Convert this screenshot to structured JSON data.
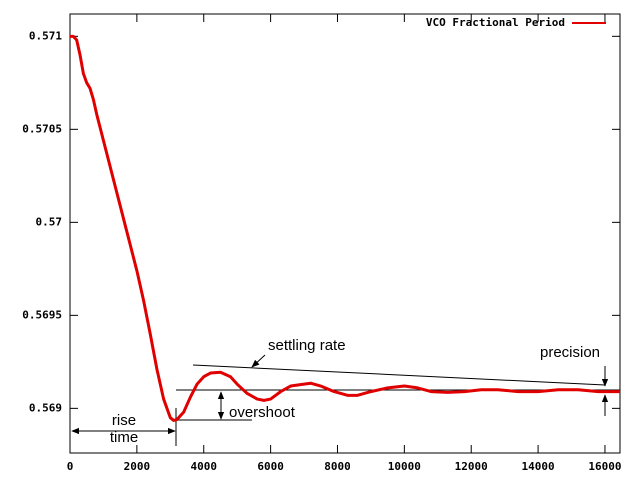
{
  "chart_data": {
    "type": "line",
    "x": [
      0,
      100,
      200,
      300,
      400,
      500,
      600,
      700,
      800,
      1000,
      1200,
      1400,
      1600,
      1800,
      2000,
      2200,
      2400,
      2600,
      2800,
      3000,
      3100,
      3200,
      3400,
      3600,
      3800,
      4000,
      4200,
      4500,
      4800,
      5000,
      5300,
      5600,
      5800,
      6000,
      6300,
      6600,
      7000,
      7200,
      7500,
      7900,
      8300,
      8600,
      9000,
      9500,
      10000,
      10400,
      10800,
      11300,
      11800,
      12300,
      12800,
      13400,
      14000,
      14600,
      15200,
      15800,
      16450
    ],
    "series": [
      {
        "name": "VCO Fractional Period",
        "color": "#e00000",
        "values": [
          0.571,
          0.571,
          0.57098,
          0.5709,
          0.5708,
          0.57075,
          0.57072,
          0.57066,
          0.57058,
          0.57044,
          0.5703,
          0.57016,
          0.57002,
          0.56988,
          0.56974,
          0.56958,
          0.5694,
          0.56921,
          0.56905,
          0.56895,
          0.568935,
          0.56894,
          0.56898,
          0.56906,
          0.56913,
          0.56917,
          0.56919,
          0.569194,
          0.56917,
          0.56913,
          0.56908,
          0.56905,
          0.569043,
          0.56905,
          0.56909,
          0.56912,
          0.56913,
          0.569135,
          0.56912,
          0.56909,
          0.56907,
          0.56907,
          0.56909,
          0.56911,
          0.56912,
          0.56911,
          0.56909,
          0.569086,
          0.56909,
          0.5691,
          0.5691,
          0.56909,
          0.56909,
          0.5691,
          0.5691,
          0.56909,
          0.56909
        ]
      }
    ],
    "xlim": [
      0,
      16450
    ],
    "xticks": [
      0,
      2000,
      4000,
      6000,
      8000,
      10000,
      12000,
      14000,
      16000
    ],
    "ylim": [
      0.56876,
      0.57112
    ],
    "yticks": [
      0.569,
      0.5695,
      0.57,
      0.5705,
      0.571
    ],
    "grid": false,
    "legend": "top-right",
    "annotations": [
      "settling rate",
      "precision",
      "overshoot",
      "rise",
      "time"
    ]
  }
}
